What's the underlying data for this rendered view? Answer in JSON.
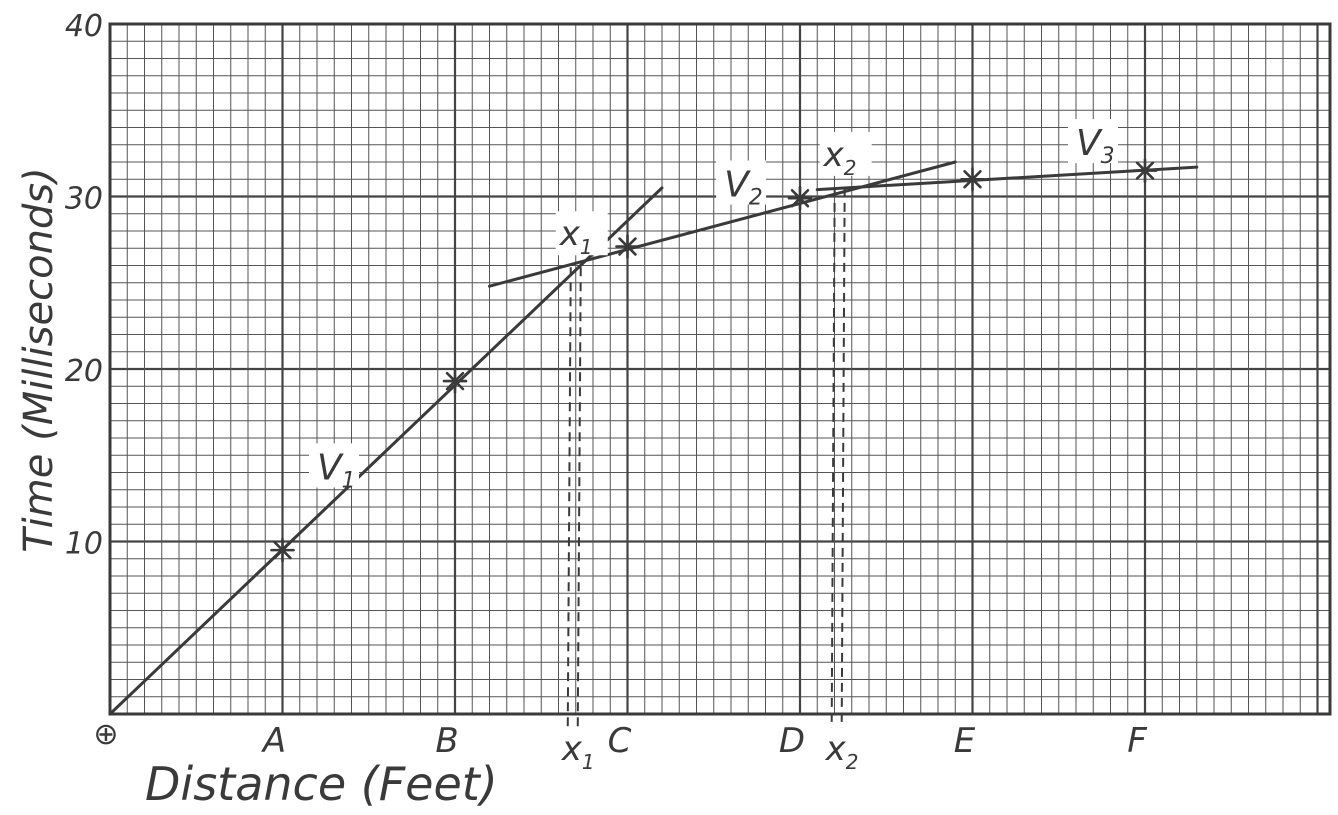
{
  "chart_data": {
    "type": "line",
    "title": "",
    "xlabel": "Distance (Feet)",
    "ylabel": "Time (Milliseconds)",
    "ylim": [
      0,
      40
    ],
    "yticks": [
      "10",
      "20",
      "30",
      "40"
    ],
    "origin_label": "⊕",
    "grid": true,
    "x_tick_labels": [
      {
        "label": "A",
        "x": 1
      },
      {
        "label": "B",
        "x": 2
      },
      {
        "label": "C",
        "x": 3
      },
      {
        "label": "D",
        "x": 4
      },
      {
        "label": "E",
        "x": 5
      },
      {
        "label": "F",
        "x": 6
      }
    ],
    "points": [
      {
        "x": 1,
        "y": 9.5
      },
      {
        "x": 2,
        "y": 19.3
      },
      {
        "x": 3,
        "y": 27.1
      },
      {
        "x": 4,
        "y": 29.9
      },
      {
        "x": 5,
        "y": 31.0
      },
      {
        "x": 6,
        "y": 31.5
      }
    ],
    "segments": [
      {
        "label": "V1",
        "label_at": [
          1.2,
          13.6
        ],
        "from": [
          0,
          0
        ],
        "to": [
          3.2,
          30.5
        ]
      },
      {
        "label": "V2",
        "label_at": [
          3.56,
          30.0
        ],
        "from": [
          2.2,
          24.8
        ],
        "to": [
          4.9,
          32.0
        ]
      },
      {
        "label": "V3",
        "label_at": [
          5.6,
          32.4
        ],
        "from": [
          4.1,
          30.4
        ],
        "to": [
          6.3,
          31.7
        ]
      }
    ],
    "crossovers": [
      {
        "label": "x1",
        "x": 2.7,
        "y": 25.9,
        "axis_label": "x1"
      },
      {
        "label": "x2",
        "x": 4.23,
        "y": 30.5,
        "axis_label": "x2"
      }
    ]
  }
}
